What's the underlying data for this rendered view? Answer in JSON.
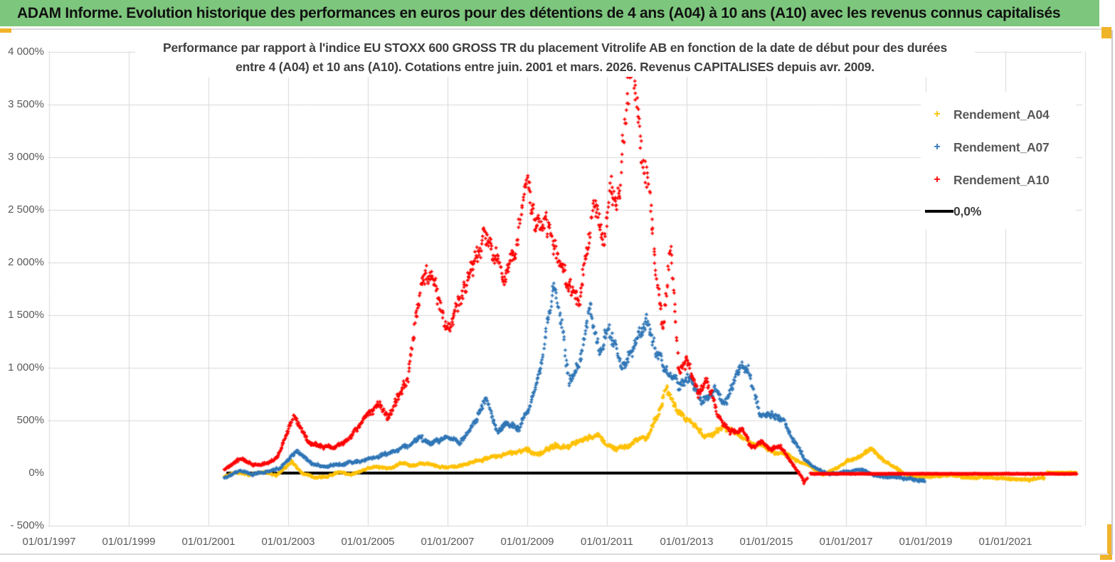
{
  "header": {
    "title": "ADAM Informe. Evolution historique des performances en euros pour des détentions de 4 ans (A04) à 10 ans (A10) avec les revenus connus capitalisés"
  },
  "decor": {
    "header_green": "#7DC67D",
    "gold_accent": "#F0B429",
    "gridline_color": "#D9D9D9",
    "axis_text_color": "#595959",
    "title_text_color": "#3F3F3F"
  },
  "chart_data": {
    "type": "scatter",
    "title_lines": [
      "Performance par rapport à l'indice EU STOXX 600 GROSS TR  du placement Vitrolife AB en fonction de la date de début pour des durées",
      "entre 4 (A04) et 10 ans (A10). Cotations entre juin. 2001 et mars. 2026. Revenus CAPITALISES depuis avr. 2009."
    ],
    "marker_glyph": "+",
    "grid": true,
    "legend_position": "right",
    "x_axis": {
      "ticks": [
        {
          "label": "01/01/1997",
          "year": 1997
        },
        {
          "label": "01/01/1999",
          "year": 1999
        },
        {
          "label": "01/01/2001",
          "year": 2001
        },
        {
          "label": "01/01/2003",
          "year": 2003
        },
        {
          "label": "01/01/2005",
          "year": 2005
        },
        {
          "label": "01/01/2007",
          "year": 2007
        },
        {
          "label": "01/01/2009",
          "year": 2009
        },
        {
          "label": "01/01/2011",
          "year": 2011
        },
        {
          "label": "01/01/2013",
          "year": 2013
        },
        {
          "label": "01/01/2015",
          "year": 2015
        },
        {
          "label": "01/01/2017",
          "year": 2017
        },
        {
          "label": "01/01/2019",
          "year": 2019
        },
        {
          "label": "01/01/2021",
          "year": 2021
        }
      ],
      "range_years": [
        1997,
        2023
      ]
    },
    "y_axis": {
      "ticks": [
        {
          "label": "4 000%",
          "value": 4000
        },
        {
          "label": "3 500%",
          "value": 3500
        },
        {
          "label": "3 000%",
          "value": 3000
        },
        {
          "label": "2 500%",
          "value": 2500
        },
        {
          "label": "2 000%",
          "value": 2000
        },
        {
          "label": "1 500%",
          "value": 1500
        },
        {
          "label": "1 000%",
          "value": 1000
        },
        {
          "label": "500%",
          "value": 500
        },
        {
          "label": "0%",
          "value": 0
        },
        {
          "label": "- 500%",
          "value": -500
        }
      ],
      "range_pct": [
        -500,
        4000
      ]
    },
    "series": [
      {
        "name": "Rendement_A04",
        "color": "#FFC000",
        "points": [
          [
            2001.4,
            -30
          ],
          [
            2001.7,
            5
          ],
          [
            2002.0,
            -15
          ],
          [
            2002.4,
            15
          ],
          [
            2002.7,
            -20
          ],
          [
            2003.1,
            110
          ],
          [
            2003.35,
            10
          ],
          [
            2003.7,
            -50
          ],
          [
            2004.05,
            -35
          ],
          [
            2004.3,
            5
          ],
          [
            2004.6,
            -20
          ],
          [
            2004.9,
            30
          ],
          [
            2005.2,
            70
          ],
          [
            2005.5,
            40
          ],
          [
            2005.8,
            90
          ],
          [
            2006.1,
            60
          ],
          [
            2006.4,
            100
          ],
          [
            2006.8,
            70
          ],
          [
            2007.2,
            55
          ],
          [
            2007.5,
            90
          ],
          [
            2007.8,
            115
          ],
          [
            2008.2,
            150
          ],
          [
            2008.6,
            195
          ],
          [
            2009.0,
            225
          ],
          [
            2009.3,
            185
          ],
          [
            2009.7,
            255
          ],
          [
            2010.0,
            235
          ],
          [
            2010.4,
            315
          ],
          [
            2010.75,
            370
          ],
          [
            2011.0,
            290
          ],
          [
            2011.2,
            245
          ],
          [
            2011.5,
            265
          ],
          [
            2011.8,
            350
          ],
          [
            2012.0,
            330
          ],
          [
            2012.25,
            560
          ],
          [
            2012.5,
            790
          ],
          [
            2012.7,
            610
          ],
          [
            2013.0,
            490
          ],
          [
            2013.3,
            410
          ],
          [
            2013.6,
            350
          ],
          [
            2013.95,
            420
          ],
          [
            2014.2,
            385
          ],
          [
            2014.5,
            305
          ],
          [
            2014.8,
            280
          ],
          [
            2015.2,
            205
          ],
          [
            2015.5,
            170
          ],
          [
            2015.8,
            120
          ],
          [
            2016.1,
            60
          ],
          [
            2016.45,
            -15
          ],
          [
            2016.8,
            55
          ],
          [
            2017.1,
            125
          ],
          [
            2017.4,
            165
          ],
          [
            2017.65,
            230
          ],
          [
            2017.9,
            125
          ],
          [
            2018.2,
            45
          ],
          [
            2018.5,
            -25
          ],
          [
            2019.0,
            -42
          ],
          [
            2019.5,
            -32
          ],
          [
            2020.0,
            -48
          ],
          [
            2020.5,
            -42
          ],
          [
            2021.0,
            -55
          ],
          [
            2021.5,
            -62
          ],
          [
            2022.0,
            -55
          ]
        ],
        "flat_zero_tail": [
          2022.05,
          2022.8
        ]
      },
      {
        "name": "Rendement_A07",
        "color": "#2E75B6",
        "points": [
          [
            2001.4,
            -40
          ],
          [
            2001.8,
            20
          ],
          [
            2002.1,
            -25
          ],
          [
            2002.5,
            15
          ],
          [
            2002.8,
            55
          ],
          [
            2003.2,
            200
          ],
          [
            2003.6,
            90
          ],
          [
            2004.0,
            60
          ],
          [
            2004.4,
            85
          ],
          [
            2004.8,
            110
          ],
          [
            2005.1,
            150
          ],
          [
            2005.5,
            200
          ],
          [
            2005.8,
            230
          ],
          [
            2006.0,
            260
          ],
          [
            2006.3,
            330
          ],
          [
            2006.6,
            295
          ],
          [
            2007.0,
            360
          ],
          [
            2007.3,
            300
          ],
          [
            2007.6,
            430
          ],
          [
            2007.95,
            730
          ],
          [
            2008.25,
            420
          ],
          [
            2008.45,
            530
          ],
          [
            2008.8,
            420
          ],
          [
            2009.1,
            700
          ],
          [
            2009.4,
            1150
          ],
          [
            2009.68,
            1830
          ],
          [
            2009.85,
            1500
          ],
          [
            2010.05,
            880
          ],
          [
            2010.3,
            1000
          ],
          [
            2010.58,
            1630
          ],
          [
            2010.8,
            1210
          ],
          [
            2011.05,
            1400
          ],
          [
            2011.35,
            1010
          ],
          [
            2011.6,
            1150
          ],
          [
            2011.85,
            1300
          ],
          [
            2012.0,
            1450
          ],
          [
            2012.2,
            1120
          ],
          [
            2012.5,
            960
          ],
          [
            2012.8,
            820
          ],
          [
            2013.1,
            900
          ],
          [
            2013.4,
            650
          ],
          [
            2013.7,
            810
          ],
          [
            2014.0,
            710
          ],
          [
            2014.35,
            1110
          ],
          [
            2014.55,
            960
          ],
          [
            2014.85,
            510
          ],
          [
            2015.1,
            560
          ],
          [
            2015.4,
            480
          ],
          [
            2015.7,
            300
          ],
          [
            2015.95,
            150
          ],
          [
            2016.3,
            40
          ],
          [
            2016.6,
            -20
          ],
          [
            2017.0,
            10
          ],
          [
            2017.4,
            30
          ],
          [
            2017.7,
            -20
          ],
          [
            2018.0,
            -35
          ],
          [
            2018.5,
            -50
          ],
          [
            2019.0,
            -80
          ]
        ],
        "flat_zero_tail": null
      },
      {
        "name": "Rendement_A10",
        "color": "#FF0000",
        "points": [
          [
            2001.4,
            30
          ],
          [
            2001.8,
            150
          ],
          [
            2002.1,
            75
          ],
          [
            2002.5,
            100
          ],
          [
            2002.75,
            160
          ],
          [
            2003.15,
            540
          ],
          [
            2003.5,
            300
          ],
          [
            2003.9,
            230
          ],
          [
            2004.2,
            250
          ],
          [
            2004.5,
            330
          ],
          [
            2004.8,
            440
          ],
          [
            2005.05,
            540
          ],
          [
            2005.3,
            620
          ],
          [
            2005.5,
            500
          ],
          [
            2005.75,
            700
          ],
          [
            2006.0,
            850
          ],
          [
            2006.2,
            1500
          ],
          [
            2006.45,
            2000
          ],
          [
            2006.7,
            1850
          ],
          [
            2007.0,
            1370
          ],
          [
            2007.35,
            1650
          ],
          [
            2007.65,
            1950
          ],
          [
            2007.9,
            2350
          ],
          [
            2008.15,
            2050
          ],
          [
            2008.4,
            1820
          ],
          [
            2008.65,
            2100
          ],
          [
            2008.85,
            2450
          ],
          [
            2009.0,
            2800
          ],
          [
            2009.2,
            2350
          ],
          [
            2009.45,
            2500
          ],
          [
            2009.75,
            2150
          ],
          [
            2010.05,
            1850
          ],
          [
            2010.3,
            1700
          ],
          [
            2010.55,
            2350
          ],
          [
            2010.7,
            2550
          ],
          [
            2010.9,
            2350
          ],
          [
            2011.1,
            2700
          ],
          [
            2011.3,
            2550
          ],
          [
            2011.5,
            3350
          ],
          [
            2011.62,
            3690
          ],
          [
            2011.75,
            3400
          ],
          [
            2011.9,
            2950
          ],
          [
            2012.05,
            2650
          ],
          [
            2012.2,
            2000
          ],
          [
            2012.4,
            1350
          ],
          [
            2012.6,
            2100
          ],
          [
            2012.8,
            950
          ],
          [
            2013.0,
            1050
          ],
          [
            2013.3,
            720
          ],
          [
            2013.5,
            850
          ],
          [
            2013.8,
            520
          ],
          [
            2014.1,
            380
          ],
          [
            2014.4,
            420
          ],
          [
            2014.6,
            250
          ],
          [
            2014.9,
            300
          ],
          [
            2015.1,
            220
          ],
          [
            2015.35,
            260
          ],
          [
            2015.6,
            110
          ],
          [
            2015.8,
            10
          ],
          [
            2015.95,
            -85
          ],
          [
            2016.05,
            -30
          ]
        ],
        "flat_zero_tail": [
          2016.1,
          2022.8
        ]
      }
    ],
    "zero_line": {
      "label": "0,0%",
      "color": "#000000",
      "value": 0,
      "from_year": 2001.45,
      "to_year": 2015.83
    }
  }
}
